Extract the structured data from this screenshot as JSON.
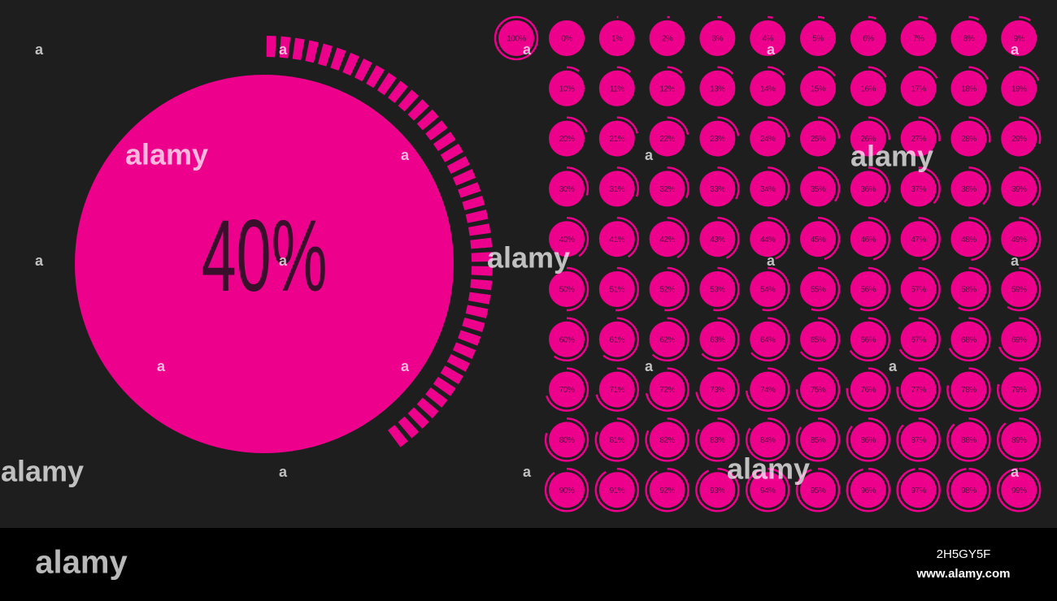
{
  "main_gauge": {
    "value": 40,
    "label": "40%"
  },
  "gauges": [
    {
      "value": 100,
      "label": "100%"
    },
    {
      "value": 0,
      "label": "0%"
    },
    {
      "value": 1,
      "label": "1%"
    },
    {
      "value": 2,
      "label": "2%"
    },
    {
      "value": 3,
      "label": "3%"
    },
    {
      "value": 4,
      "label": "4%"
    },
    {
      "value": 5,
      "label": "5%"
    },
    {
      "value": 6,
      "label": "6%"
    },
    {
      "value": 7,
      "label": "7%"
    },
    {
      "value": 8,
      "label": "8%"
    },
    {
      "value": 9,
      "label": "9%"
    },
    {
      "value": 10,
      "label": "10%"
    },
    {
      "value": 11,
      "label": "11%"
    },
    {
      "value": 12,
      "label": "12%"
    },
    {
      "value": 13,
      "label": "13%"
    },
    {
      "value": 14,
      "label": "14%"
    },
    {
      "value": 15,
      "label": "15%"
    },
    {
      "value": 16,
      "label": "16%"
    },
    {
      "value": 17,
      "label": "17%"
    },
    {
      "value": 18,
      "label": "18%"
    },
    {
      "value": 19,
      "label": "19%"
    },
    {
      "value": 20,
      "label": "20%"
    },
    {
      "value": 21,
      "label": "21%"
    },
    {
      "value": 22,
      "label": "22%"
    },
    {
      "value": 23,
      "label": "23%"
    },
    {
      "value": 24,
      "label": "24%"
    },
    {
      "value": 25,
      "label": "25%"
    },
    {
      "value": 26,
      "label": "26%"
    },
    {
      "value": 27,
      "label": "27%"
    },
    {
      "value": 28,
      "label": "28%"
    },
    {
      "value": 29,
      "label": "29%"
    },
    {
      "value": 30,
      "label": "30%"
    },
    {
      "value": 31,
      "label": "31%"
    },
    {
      "value": 32,
      "label": "32%"
    },
    {
      "value": 33,
      "label": "33%"
    },
    {
      "value": 34,
      "label": "34%"
    },
    {
      "value": 35,
      "label": "35%"
    },
    {
      "value": 36,
      "label": "36%"
    },
    {
      "value": 37,
      "label": "37%"
    },
    {
      "value": 38,
      "label": "38%"
    },
    {
      "value": 39,
      "label": "39%"
    },
    {
      "value": 40,
      "label": "40%"
    },
    {
      "value": 41,
      "label": "41%"
    },
    {
      "value": 42,
      "label": "42%"
    },
    {
      "value": 43,
      "label": "43%"
    },
    {
      "value": 44,
      "label": "44%"
    },
    {
      "value": 45,
      "label": "45%"
    },
    {
      "value": 46,
      "label": "46%"
    },
    {
      "value": 47,
      "label": "47%"
    },
    {
      "value": 48,
      "label": "48%"
    },
    {
      "value": 49,
      "label": "49%"
    },
    {
      "value": 50,
      "label": "50%"
    },
    {
      "value": 51,
      "label": "51%"
    },
    {
      "value": 52,
      "label": "52%"
    },
    {
      "value": 53,
      "label": "53%"
    },
    {
      "value": 54,
      "label": "54%"
    },
    {
      "value": 55,
      "label": "55%"
    },
    {
      "value": 56,
      "label": "56%"
    },
    {
      "value": 57,
      "label": "57%"
    },
    {
      "value": 58,
      "label": "58%"
    },
    {
      "value": 59,
      "label": "59%"
    },
    {
      "value": 60,
      "label": "60%"
    },
    {
      "value": 61,
      "label": "61%"
    },
    {
      "value": 62,
      "label": "62%"
    },
    {
      "value": 63,
      "label": "63%"
    },
    {
      "value": 64,
      "label": "64%"
    },
    {
      "value": 65,
      "label": "65%"
    },
    {
      "value": 66,
      "label": "66%"
    },
    {
      "value": 67,
      "label": "67%"
    },
    {
      "value": 68,
      "label": "68%"
    },
    {
      "value": 69,
      "label": "69%"
    },
    {
      "value": 70,
      "label": "70%"
    },
    {
      "value": 71,
      "label": "71%"
    },
    {
      "value": 72,
      "label": "72%"
    },
    {
      "value": 73,
      "label": "73%"
    },
    {
      "value": 74,
      "label": "74%"
    },
    {
      "value": 75,
      "label": "75%"
    },
    {
      "value": 76,
      "label": "76%"
    },
    {
      "value": 77,
      "label": "77%"
    },
    {
      "value": 78,
      "label": "78%"
    },
    {
      "value": 79,
      "label": "79%"
    },
    {
      "value": 80,
      "label": "80%"
    },
    {
      "value": 81,
      "label": "81%"
    },
    {
      "value": 82,
      "label": "82%"
    },
    {
      "value": 83,
      "label": "83%"
    },
    {
      "value": 84,
      "label": "84%"
    },
    {
      "value": 85,
      "label": "85%"
    },
    {
      "value": 86,
      "label": "86%"
    },
    {
      "value": 87,
      "label": "87%"
    },
    {
      "value": 88,
      "label": "88%"
    },
    {
      "value": 89,
      "label": "89%"
    },
    {
      "value": 90,
      "label": "90%"
    },
    {
      "value": 91,
      "label": "91%"
    },
    {
      "value": 92,
      "label": "92%"
    },
    {
      "value": 93,
      "label": "93%"
    },
    {
      "value": 94,
      "label": "94%"
    },
    {
      "value": 95,
      "label": "95%"
    },
    {
      "value": 96,
      "label": "96%"
    },
    {
      "value": 97,
      "label": "97%"
    },
    {
      "value": 98,
      "label": "98%"
    },
    {
      "value": 99,
      "label": "99%"
    }
  ],
  "watermark": {
    "brand": "alamy",
    "letter": "a",
    "image_id": "2H5GY5F",
    "url": "www.alamy.com"
  }
}
